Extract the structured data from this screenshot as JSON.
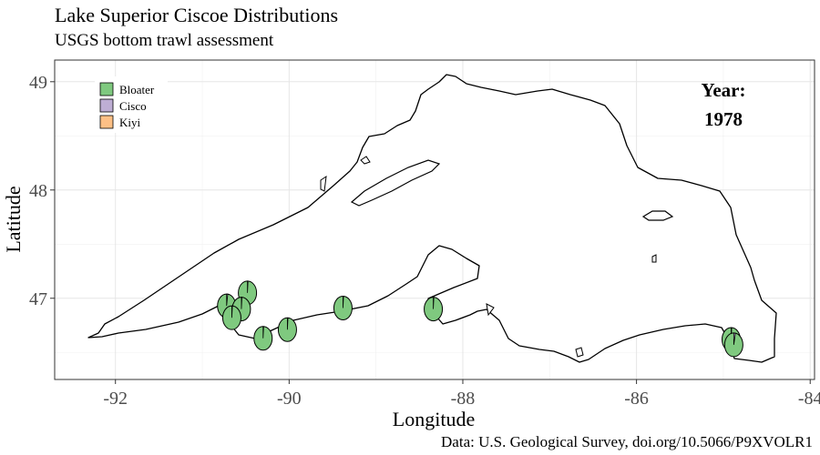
{
  "header": {
    "title": "Lake Superior Ciscoe Distributions",
    "subtitle": "USGS bottom trawl assessment"
  },
  "year_box": {
    "label": "Year:",
    "value": "1978"
  },
  "caption": "Data: U.S. Geological Survey, doi.org/10.5066/P9XVOLR1",
  "chart_data": {
    "type": "scatter",
    "xlabel": "Longitude",
    "ylabel": "Latitude",
    "xlim": [
      -92.7,
      -83.95
    ],
    "ylim": [
      46.25,
      49.2
    ],
    "x_ticks": [
      {
        "value": -92,
        "label": "-92"
      },
      {
        "value": -90,
        "label": "-90"
      },
      {
        "value": -88,
        "label": "-88"
      },
      {
        "value": -86,
        "label": "-86"
      },
      {
        "value": -84,
        "label": "-84"
      }
    ],
    "y_ticks": [
      {
        "value": 47,
        "label": "47"
      },
      {
        "value": 48,
        "label": "48"
      },
      {
        "value": 49,
        "label": "49"
      }
    ],
    "grid": true,
    "legend_position": "top-left",
    "legend": [
      {
        "name": "Bloater",
        "color": "#7fc97f"
      },
      {
        "name": "Cisco",
        "color": "#beaed4"
      },
      {
        "name": "Kiyi",
        "color": "#fdc086"
      }
    ],
    "series": [
      {
        "name": "Bloater",
        "color": "#7fc97f",
        "points": [
          {
            "lon": -90.48,
            "lat": 47.05,
            "bloater": 0.99
          },
          {
            "lon": -90.72,
            "lat": 46.93,
            "bloater": 0.98
          },
          {
            "lon": -90.55,
            "lat": 46.9,
            "bloater": 0.99
          },
          {
            "lon": -90.66,
            "lat": 46.82,
            "bloater": 0.99
          },
          {
            "lon": -90.3,
            "lat": 46.63,
            "bloater": 0.99
          },
          {
            "lon": -90.02,
            "lat": 46.71,
            "bloater": 0.99
          },
          {
            "lon": -89.38,
            "lat": 46.91,
            "bloater": 0.99
          },
          {
            "lon": -88.34,
            "lat": 46.9,
            "bloater": 0.99
          },
          {
            "lon": -84.91,
            "lat": 46.62,
            "bloater": 0.99
          },
          {
            "lon": -84.88,
            "lat": 46.57,
            "bloater": 0.97
          }
        ]
      }
    ]
  }
}
